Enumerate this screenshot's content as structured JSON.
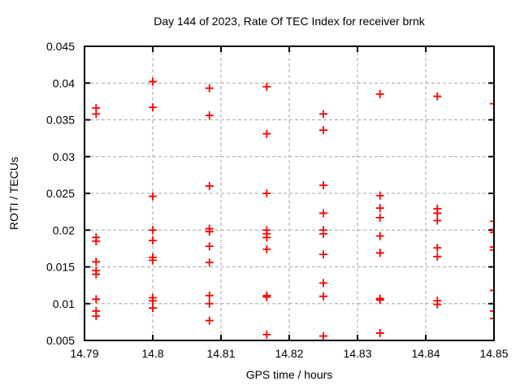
{
  "page": {
    "background": "#ffffff"
  },
  "chart_data": {
    "type": "scatter",
    "title": "Day 144 of 2023, Rate Of TEC Index for receiver brnk",
    "xlabel": "GPS time / hours",
    "ylabel": "ROTI / TECUs",
    "xlim": [
      14.79,
      14.85
    ],
    "ylim": [
      0.005,
      0.045
    ],
    "xticks": [
      14.79,
      14.8,
      14.81,
      14.82,
      14.83,
      14.84,
      14.85
    ],
    "xtick_labels": [
      "14.79",
      "14.8",
      "14.81",
      "14.82",
      "14.83",
      "14.84",
      "14.85"
    ],
    "yticks": [
      0.005,
      0.01,
      0.015,
      0.02,
      0.025,
      0.03,
      0.035,
      0.04,
      0.045
    ],
    "ytick_labels": [
      "0.005",
      "0.01",
      "0.015",
      "0.02",
      "0.025",
      "0.03",
      "0.035",
      "0.04",
      "0.045"
    ],
    "grid": true,
    "legend": "none",
    "marker": {
      "shape": "plus",
      "color": "#ff0000",
      "size": 10,
      "stroke_width": 1.8
    },
    "colors": {
      "axis": "#000000",
      "grid": "#a6a6a6",
      "text": "#000000",
      "background": "#ffffff"
    },
    "series": [
      {
        "name": "ROTI",
        "points": [
          [
            14.7917,
            0.0366
          ],
          [
            14.7917,
            0.0358
          ],
          [
            14.7917,
            0.019
          ],
          [
            14.7917,
            0.0185
          ],
          [
            14.7917,
            0.0157
          ],
          [
            14.7917,
            0.0145
          ],
          [
            14.7917,
            0.014
          ],
          [
            14.7917,
            0.0106
          ],
          [
            14.7917,
            0.009
          ],
          [
            14.7917,
            0.0083
          ],
          [
            14.8,
            0.0402
          ],
          [
            14.8,
            0.0367
          ],
          [
            14.8,
            0.0246
          ],
          [
            14.8,
            0.02
          ],
          [
            14.8,
            0.0186
          ],
          [
            14.8,
            0.0163
          ],
          [
            14.8,
            0.0159
          ],
          [
            14.8,
            0.0108
          ],
          [
            14.8,
            0.0104
          ],
          [
            14.8,
            0.0094
          ],
          [
            14.8083,
            0.0393
          ],
          [
            14.8083,
            0.0356
          ],
          [
            14.8083,
            0.026
          ],
          [
            14.8083,
            0.0202
          ],
          [
            14.8083,
            0.0198
          ],
          [
            14.8083,
            0.0178
          ],
          [
            14.8083,
            0.0156
          ],
          [
            14.8083,
            0.0111
          ],
          [
            14.8083,
            0.01
          ],
          [
            14.8083,
            0.0077
          ],
          [
            14.8167,
            0.0395
          ],
          [
            14.8167,
            0.0331
          ],
          [
            14.8167,
            0.025
          ],
          [
            14.8167,
            0.02
          ],
          [
            14.8167,
            0.0195
          ],
          [
            14.8167,
            0.019
          ],
          [
            14.8167,
            0.0174
          ],
          [
            14.8167,
            0.0111
          ],
          [
            14.8167,
            0.0109
          ],
          [
            14.8167,
            0.0058
          ],
          [
            14.825,
            0.0358
          ],
          [
            14.825,
            0.0336
          ],
          [
            14.825,
            0.0261
          ],
          [
            14.825,
            0.0223
          ],
          [
            14.825,
            0.02
          ],
          [
            14.825,
            0.0195
          ],
          [
            14.825,
            0.0167
          ],
          [
            14.825,
            0.0128
          ],
          [
            14.825,
            0.011
          ],
          [
            14.825,
            0.0056
          ],
          [
            14.8333,
            0.0385
          ],
          [
            14.8333,
            0.0247
          ],
          [
            14.8333,
            0.023
          ],
          [
            14.8333,
            0.0217
          ],
          [
            14.8333,
            0.0192
          ],
          [
            14.8333,
            0.0169
          ],
          [
            14.8333,
            0.0107
          ],
          [
            14.8333,
            0.0105
          ],
          [
            14.8333,
            0.006
          ],
          [
            14.8417,
            0.0382
          ],
          [
            14.8417,
            0.0229
          ],
          [
            14.8417,
            0.0223
          ],
          [
            14.8417,
            0.0213
          ],
          [
            14.8417,
            0.0176
          ],
          [
            14.8417,
            0.0164
          ],
          [
            14.8417,
            0.0104
          ],
          [
            14.8417,
            0.0099
          ],
          [
            14.85,
            0.0372
          ],
          [
            14.85,
            0.0212
          ],
          [
            14.85,
            0.0201
          ],
          [
            14.85,
            0.0197
          ],
          [
            14.85,
            0.0177
          ],
          [
            14.85,
            0.0173
          ],
          [
            14.85,
            0.0118
          ],
          [
            14.85,
            0.009
          ],
          [
            14.85,
            0.008
          ]
        ]
      }
    ]
  }
}
